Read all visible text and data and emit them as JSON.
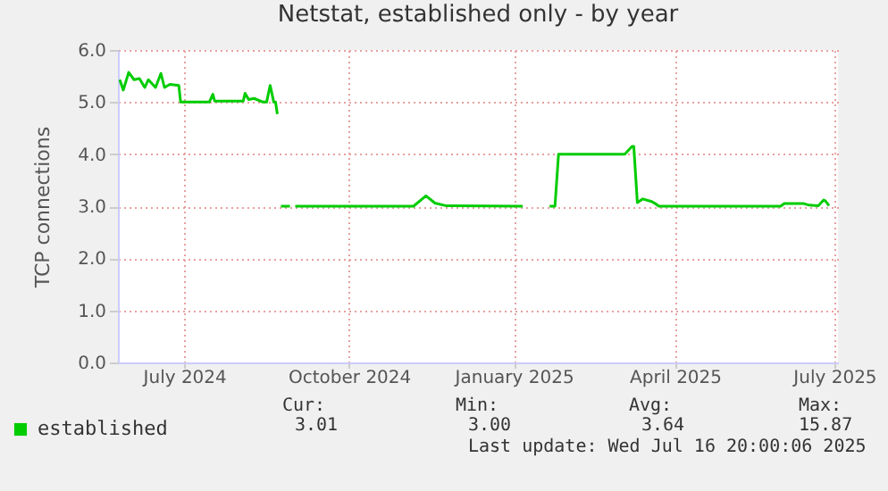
{
  "chart_data": {
    "type": "line",
    "title": "Netstat, established only - by year",
    "ylabel": "TCP connections",
    "x": [
      "2024-06-10",
      "2024-06-12",
      "2024-06-15",
      "2024-06-18",
      "2024-06-21",
      "2024-06-24",
      "2024-06-26",
      "2024-06-30",
      "2024-07-03",
      "2024-07-05",
      "2024-07-08",
      "2024-07-13",
      "2024-07-14",
      "2024-07-23",
      "2024-07-30",
      "2024-08-01",
      "2024-08-02",
      "2024-08-12",
      "2024-08-18",
      "2024-08-19",
      "2024-08-21",
      "2024-08-24",
      "2024-08-29",
      "2024-08-31",
      "2024-09-02",
      "2024-09-04",
      "2024-09-05",
      "2024-09-06",
      "2024-09-07",
      "2024-09-08",
      "2024-09-13",
      "2024-09-14",
      "2024-09-16",
      "2024-11-21",
      "2024-11-28",
      "2024-12-03",
      "2024-12-09",
      "2025-01-21",
      "2025-01-28",
      "2025-02-05",
      "2025-02-08",
      "2025-02-10",
      "2025-03-19",
      "2025-03-23",
      "2025-03-24",
      "2025-03-26",
      "2025-03-29",
      "2025-04-03",
      "2025-04-05",
      "2025-04-07",
      "2025-06-14",
      "2025-06-16",
      "2025-06-27",
      "2025-06-30",
      "2025-07-05",
      "2025-07-08",
      "2025-07-09",
      "2025-07-11"
    ],
    "series": [
      {
        "name": "established",
        "color": "#00cc00",
        "values": [
          5.43,
          5.23,
          5.57,
          5.43,
          5.45,
          5.28,
          5.43,
          5.28,
          5.55,
          5.28,
          5.34,
          5.32,
          5.0,
          5.0,
          5.0,
          5.15,
          5.02,
          5.02,
          5.02,
          5.17,
          5.05,
          5.07,
          5.0,
          5.0,
          5.32,
          5.0,
          5.0,
          4.77,
          null,
          3.0,
          3.0,
          null,
          3.0,
          3.0,
          3.2,
          3.06,
          3.01,
          3.0,
          null,
          3.0,
          3.0,
          4.0,
          4.0,
          4.15,
          4.15,
          3.07,
          3.14,
          3.09,
          3.05,
          3.0,
          3.0,
          3.05,
          3.05,
          3.02,
          3.01,
          3.12,
          3.1,
          3.01
        ]
      }
    ],
    "xlim": [
      "2024-06-09",
      "2025-07-16"
    ],
    "xticks": [
      {
        "value": "2024-07-16",
        "label": "July 2024"
      },
      {
        "value": "2024-10-16",
        "label": "October 2024"
      },
      {
        "value": "2025-01-16",
        "label": "January 2025"
      },
      {
        "value": "2025-04-16",
        "label": "April 2025"
      },
      {
        "value": "2025-07-14",
        "label": "July 2025"
      }
    ],
    "ylim": [
      0,
      6
    ],
    "yticks": [
      {
        "value": 0,
        "label": "0.0"
      },
      {
        "value": 1,
        "label": "1.0"
      },
      {
        "value": 2,
        "label": "2.0"
      },
      {
        "value": 3,
        "label": "3.0"
      },
      {
        "value": 4,
        "label": "4.0"
      },
      {
        "value": 5,
        "label": "5.0"
      },
      {
        "value": 6,
        "label": "6.0"
      }
    ],
    "grid": true,
    "legend": "bottom left",
    "marker": "none",
    "line_style": "solid",
    "annotations": [
      "Cur:",
      "3.01",
      "Min:",
      "3.00",
      "Avg:",
      "3.64",
      "Max:",
      "15.87",
      "Last update: Wed Jul 16 20:00:06 2025"
    ]
  }
}
